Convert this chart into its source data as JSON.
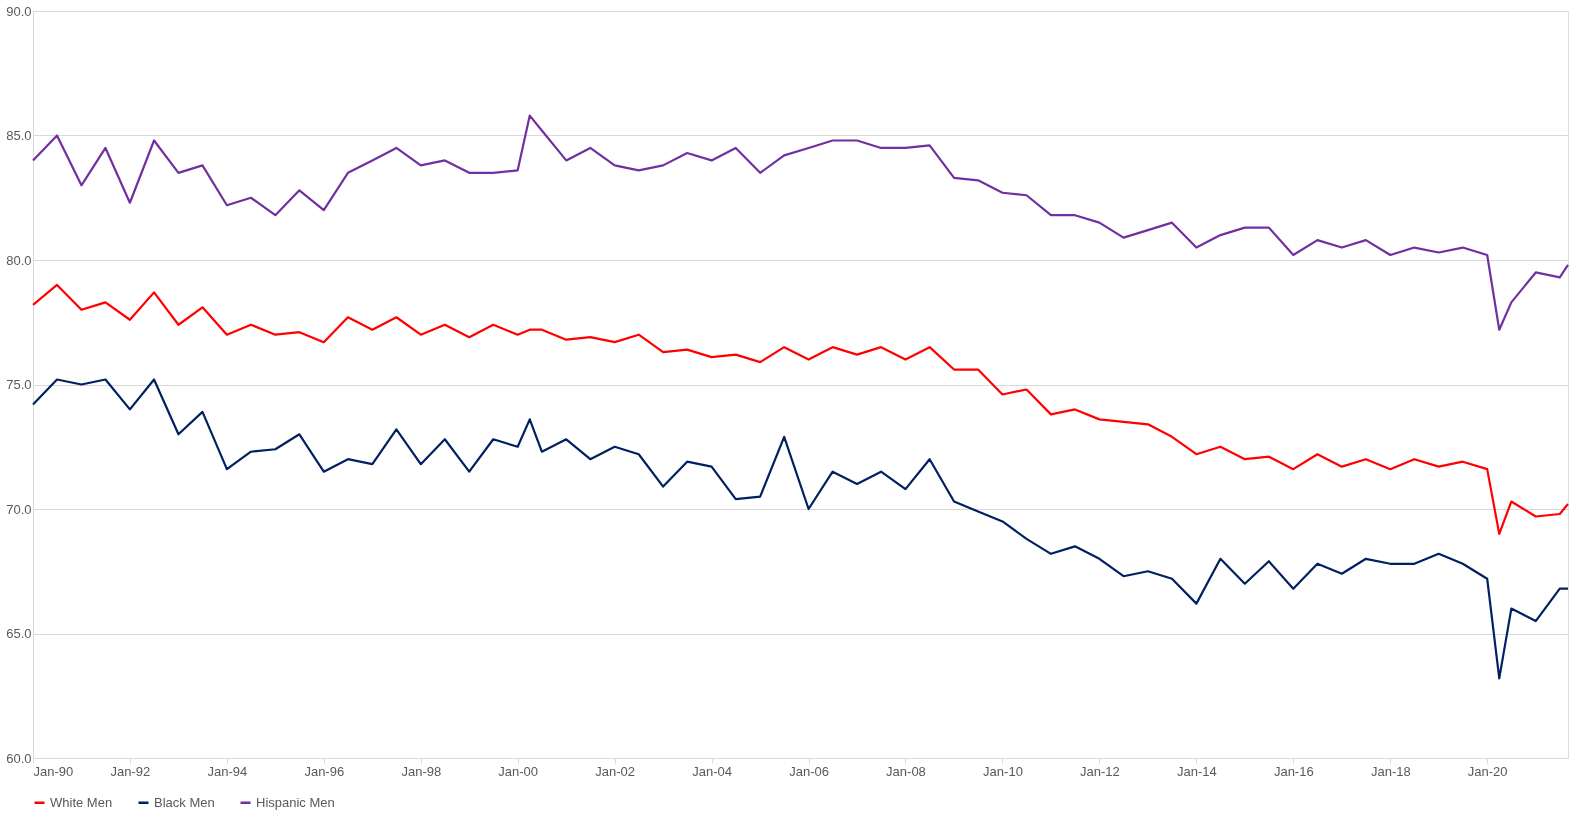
{
  "chart_data": {
    "type": "line",
    "x": [
      "1990-01",
      "1990-07",
      "1991-01",
      "1991-07",
      "1992-01",
      "1992-07",
      "1993-01",
      "1993-07",
      "1994-01",
      "1994-07",
      "1995-01",
      "1995-07",
      "1996-01",
      "1996-07",
      "1997-01",
      "1997-07",
      "1998-01",
      "1998-07",
      "1999-01",
      "1999-07",
      "2000-01",
      "2000-04",
      "2000-07",
      "2001-01",
      "2001-07",
      "2002-01",
      "2002-07",
      "2003-01",
      "2003-07",
      "2004-01",
      "2004-07",
      "2005-01",
      "2005-07",
      "2006-01",
      "2006-07",
      "2007-01",
      "2007-07",
      "2008-01",
      "2008-07",
      "2009-01",
      "2009-07",
      "2010-01",
      "2010-07",
      "2011-01",
      "2011-07",
      "2012-01",
      "2012-07",
      "2013-01",
      "2013-07",
      "2014-01",
      "2014-07",
      "2015-01",
      "2015-07",
      "2016-01",
      "2016-07",
      "2017-01",
      "2017-07",
      "2018-01",
      "2018-07",
      "2019-01",
      "2019-07",
      "2020-01",
      "2020-04",
      "2020-07",
      "2021-01",
      "2021-07",
      "2021-09"
    ],
    "series": [
      {
        "name": "White Men",
        "color": "#ff0000",
        "values": [
          78.2,
          79.0,
          78.0,
          78.3,
          77.6,
          78.7,
          77.4,
          78.1,
          77.0,
          77.4,
          77.0,
          77.1,
          76.7,
          77.7,
          77.2,
          77.7,
          77.0,
          77.4,
          76.9,
          77.4,
          77.0,
          77.2,
          77.2,
          76.8,
          76.9,
          76.7,
          77.0,
          76.3,
          76.4,
          76.1,
          76.2,
          75.9,
          76.5,
          76.0,
          76.5,
          76.2,
          76.5,
          76.0,
          76.5,
          75.6,
          75.6,
          74.6,
          74.8,
          73.8,
          74.0,
          73.6,
          73.5,
          73.4,
          72.9,
          72.2,
          72.5,
          72.0,
          72.1,
          71.6,
          72.2,
          71.7,
          72.0,
          71.6,
          72.0,
          71.7,
          71.9,
          71.6,
          69.0,
          70.3,
          69.7,
          69.8,
          70.2
        ]
      },
      {
        "name": "Black Men",
        "color": "#002060",
        "values": [
          74.2,
          75.2,
          75.0,
          75.2,
          74.0,
          75.2,
          73.0,
          73.9,
          71.6,
          72.3,
          72.4,
          73.0,
          71.5,
          72.0,
          71.8,
          73.2,
          71.8,
          72.8,
          71.5,
          72.8,
          72.5,
          73.6,
          72.3,
          72.8,
          72.0,
          72.5,
          72.2,
          70.9,
          71.9,
          71.7,
          70.4,
          70.5,
          72.9,
          70.0,
          71.5,
          71.0,
          71.5,
          70.8,
          72.0,
          70.3,
          69.9,
          69.5,
          68.8,
          68.2,
          68.5,
          68.0,
          67.3,
          67.5,
          67.2,
          66.2,
          68.0,
          67.0,
          67.9,
          66.8,
          67.8,
          67.4,
          68.0,
          67.8,
          67.8,
          68.2,
          67.8,
          67.2,
          63.2,
          66.0,
          65.5,
          66.8,
          66.8
        ]
      },
      {
        "name": "Hispanic Men",
        "color": "#7030a0",
        "values": [
          84.0,
          85.0,
          83.0,
          84.5,
          82.3,
          84.8,
          83.5,
          83.8,
          82.2,
          82.5,
          81.8,
          82.8,
          82.0,
          83.5,
          84.0,
          84.5,
          83.8,
          84.0,
          83.5,
          83.5,
          83.6,
          85.8,
          85.2,
          84.0,
          84.5,
          83.8,
          83.6,
          83.8,
          84.3,
          84.0,
          84.5,
          83.5,
          84.2,
          84.5,
          84.8,
          84.8,
          84.5,
          84.5,
          84.6,
          83.3,
          83.2,
          82.7,
          82.6,
          81.8,
          81.8,
          81.5,
          80.9,
          81.2,
          81.5,
          80.5,
          81.0,
          81.3,
          81.3,
          80.2,
          80.8,
          80.5,
          80.8,
          80.2,
          80.5,
          80.3,
          80.5,
          80.2,
          77.2,
          78.3,
          79.5,
          79.3,
          79.8
        ]
      }
    ],
    "xlim": [
      "1990-01",
      "2021-09"
    ],
    "xticks": [
      {
        "value": "1990-01",
        "label": "Jan-90"
      },
      {
        "value": "1992-01",
        "label": "Jan-92"
      },
      {
        "value": "1994-01",
        "label": "Jan-94"
      },
      {
        "value": "1996-01",
        "label": "Jan-96"
      },
      {
        "value": "1998-01",
        "label": "Jan-98"
      },
      {
        "value": "2000-01",
        "label": "Jan-00"
      },
      {
        "value": "2002-01",
        "label": "Jan-02"
      },
      {
        "value": "2004-01",
        "label": "Jan-04"
      },
      {
        "value": "2006-01",
        "label": "Jan-06"
      },
      {
        "value": "2008-01",
        "label": "Jan-08"
      },
      {
        "value": "2010-01",
        "label": "Jan-10"
      },
      {
        "value": "2012-01",
        "label": "Jan-12"
      },
      {
        "value": "2014-01",
        "label": "Jan-14"
      },
      {
        "value": "2016-01",
        "label": "Jan-16"
      },
      {
        "value": "2018-01",
        "label": "Jan-18"
      },
      {
        "value": "2020-01",
        "label": "Jan-20"
      }
    ],
    "ylim": [
      60,
      90
    ],
    "yticks": [
      {
        "value": 60,
        "label": "60.0"
      },
      {
        "value": 65,
        "label": "65.0"
      },
      {
        "value": 70,
        "label": "70.0"
      },
      {
        "value": 75,
        "label": "75.0"
      },
      {
        "value": 80,
        "label": "80.0"
      },
      {
        "value": 85,
        "label": "85.0"
      },
      {
        "value": 90,
        "label": "90.0"
      }
    ],
    "grid": "y",
    "legend": "bottom",
    "line_style": "solid",
    "marker": "none"
  }
}
